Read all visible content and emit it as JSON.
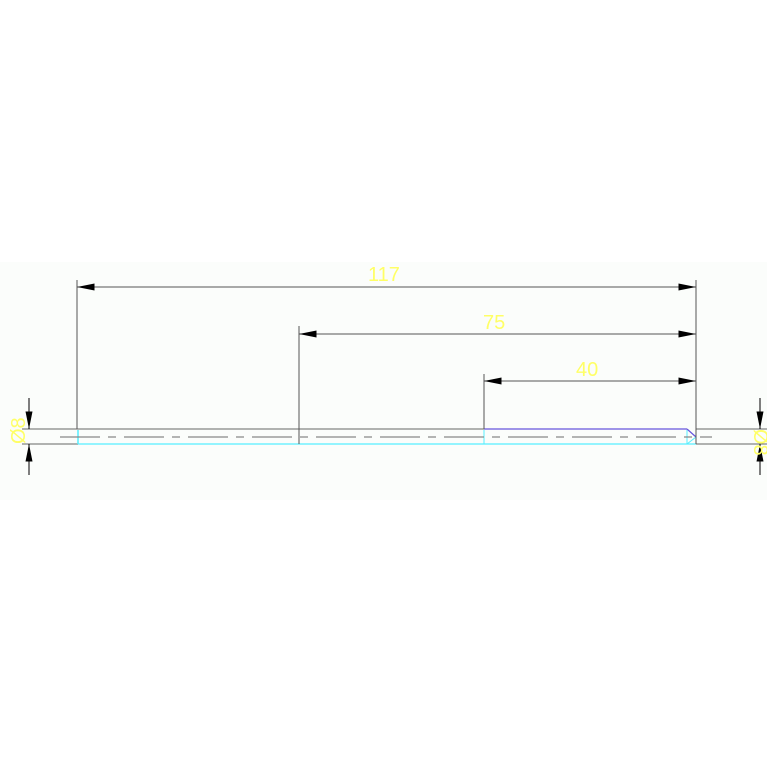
{
  "drawing": {
    "dimensions": {
      "overall": "117",
      "middle": "75",
      "short": "40",
      "diameter_left": "Ø8",
      "diameter_right": "Ø8"
    },
    "colors": {
      "background": "#fbfdfb",
      "dimension_line": "#555555",
      "dimension_text": "#ffff66",
      "outline_cyan": "#55eeff",
      "outline_blue": "#6655dd",
      "centerline": "#888888"
    }
  }
}
